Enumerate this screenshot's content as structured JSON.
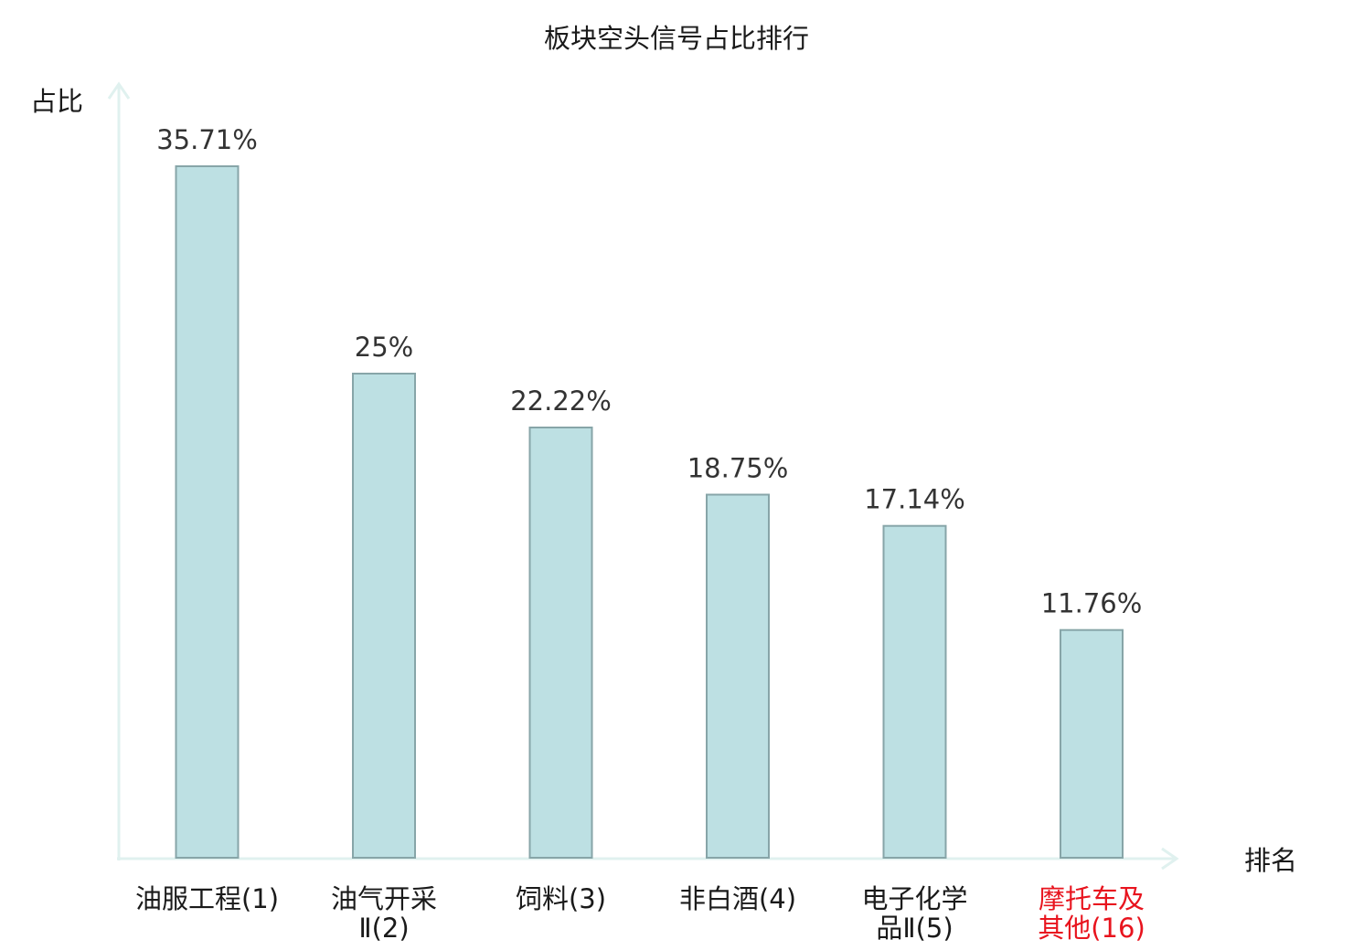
{
  "chart_data": {
    "type": "bar",
    "title": "板块空头信号占比排行",
    "xlabel": "排名",
    "ylabel": "占比",
    "ylim": [
      0,
      40
    ],
    "grid": false,
    "categories": [
      [
        "油服工程(1)"
      ],
      [
        "油气开采",
        "Ⅱ(2)"
      ],
      [
        "饲料(3)"
      ],
      [
        "非白酒(4)"
      ],
      [
        "电子化学",
        "品Ⅱ(5)"
      ],
      [
        "摩托车及",
        "其他(16)"
      ]
    ],
    "values": [
      35.71,
      25,
      22.22,
      18.75,
      17.14,
      11.76
    ],
    "value_labels": [
      "35.71%",
      "25%",
      "22.22%",
      "18.75%",
      "17.14%",
      "11.76%"
    ],
    "highlight_index": 5
  },
  "colors": {
    "bar_fill": "#bde0e3",
    "bar_stroke": "#87a5a8",
    "axis": "#e0f1ef",
    "label_normal": "#1a1a1a",
    "label_highlight": "#e8141e"
  }
}
